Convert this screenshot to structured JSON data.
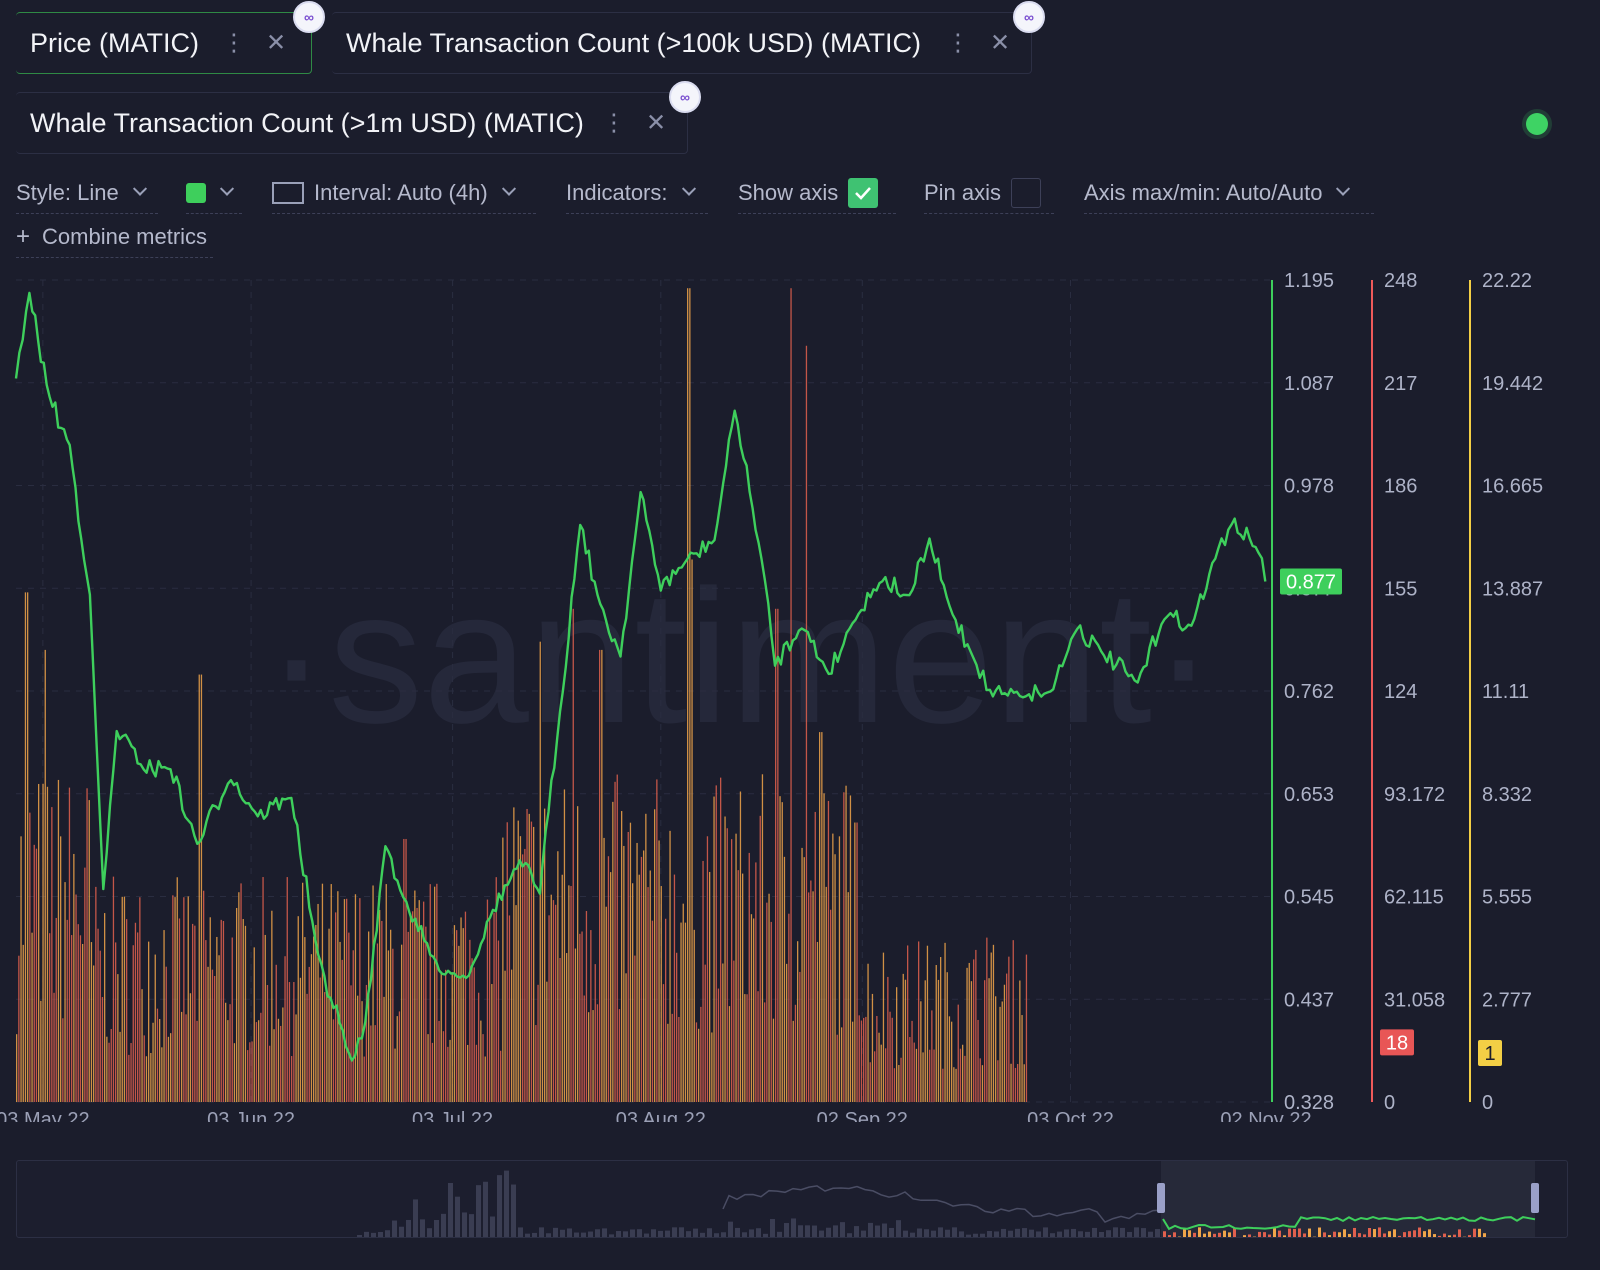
{
  "tabs": [
    {
      "label": "Price (MATIC)",
      "accent": "#3ecf5c"
    },
    {
      "label": "Whale Transaction Count (>100k USD) (MATIC)",
      "accent": "#ef5a5a"
    },
    {
      "label": "Whale Transaction Count (>1m USD) (MATIC)",
      "accent": "#f3cf45"
    }
  ],
  "badge_icon": "polygon-matic-icon",
  "toolbar": {
    "style_label": "Style: Line",
    "color": "#3ecf5c",
    "interval_label": "Interval: Auto (4h)",
    "indicators_label": "Indicators:",
    "show_axis_label": "Show axis",
    "show_axis_checked": true,
    "pin_axis_label": "Pin axis",
    "pin_axis_checked": false,
    "axis_maxmin_label": "Axis max/min: Auto/Auto",
    "combine_label": "Combine metrics"
  },
  "watermark": "·santiment·",
  "chart_data": {
    "type": "line",
    "x_ticks": [
      "03 May 22",
      "03 Jun 22",
      "03 Jul 22",
      "03 Aug 22",
      "02 Sep 22",
      "03 Oct 22",
      "02 Nov 22"
    ],
    "x_range": [
      "2022-04-29",
      "2022-11-02"
    ],
    "axes": [
      {
        "name": "Price (MATIC)",
        "color": "#3ecf5c",
        "ticks": [
          "1.195",
          "1.087",
          "0.978",
          "0.877",
          "0.762",
          "0.653",
          "0.545",
          "0.437",
          "0.328"
        ],
        "min": 0.328,
        "max": 1.195,
        "last": "0.877"
      },
      {
        "name": "Whale Transaction Count (>100k USD) (MATIC)",
        "color": "#ef5a5a",
        "ticks": [
          "248",
          "217",
          "186",
          "155",
          "124",
          "93.172",
          "62.115",
          "31.058",
          "0"
        ],
        "min": 0,
        "max": 248,
        "last": "18"
      },
      {
        "name": "Whale Transaction Count (>1m USD) (MATIC)",
        "color": "#f3cf45",
        "ticks": [
          "22.22",
          "19.442",
          "16.665",
          "13.887",
          "11.11",
          "8.332",
          "5.555",
          "2.777",
          "0"
        ],
        "min": 0,
        "max": 22.22,
        "last": "1"
      }
    ],
    "price_series": [
      {
        "date": "2022-04-29",
        "value": 1.09
      },
      {
        "date": "2022-05-01",
        "value": 1.18
      },
      {
        "date": "2022-05-04",
        "value": 1.07
      },
      {
        "date": "2022-05-07",
        "value": 1.02
      },
      {
        "date": "2022-05-10",
        "value": 0.86
      },
      {
        "date": "2022-05-12",
        "value": 0.55
      },
      {
        "date": "2022-05-14",
        "value": 0.72
      },
      {
        "date": "2022-05-18",
        "value": 0.68
      },
      {
        "date": "2022-05-22",
        "value": 0.68
      },
      {
        "date": "2022-05-26",
        "value": 0.6
      },
      {
        "date": "2022-05-31",
        "value": 0.67
      },
      {
        "date": "2022-06-04",
        "value": 0.63
      },
      {
        "date": "2022-06-09",
        "value": 0.65
      },
      {
        "date": "2022-06-13",
        "value": 0.48
      },
      {
        "date": "2022-06-18",
        "value": 0.37
      },
      {
        "date": "2022-06-20",
        "value": 0.41
      },
      {
        "date": "2022-06-23",
        "value": 0.6
      },
      {
        "date": "2022-06-27",
        "value": 0.52
      },
      {
        "date": "2022-07-01",
        "value": 0.47
      },
      {
        "date": "2022-07-05",
        "value": 0.46
      },
      {
        "date": "2022-07-09",
        "value": 0.53
      },
      {
        "date": "2022-07-13",
        "value": 0.58
      },
      {
        "date": "2022-07-16",
        "value": 0.55
      },
      {
        "date": "2022-07-19",
        "value": 0.74
      },
      {
        "date": "2022-07-22",
        "value": 0.94
      },
      {
        "date": "2022-07-25",
        "value": 0.85
      },
      {
        "date": "2022-07-28",
        "value": 0.8
      },
      {
        "date": "2022-07-31",
        "value": 0.97
      },
      {
        "date": "2022-08-03",
        "value": 0.87
      },
      {
        "date": "2022-08-07",
        "value": 0.9
      },
      {
        "date": "2022-08-11",
        "value": 0.92
      },
      {
        "date": "2022-08-14",
        "value": 1.06
      },
      {
        "date": "2022-08-18",
        "value": 0.9
      },
      {
        "date": "2022-08-20",
        "value": 0.79
      },
      {
        "date": "2022-08-24",
        "value": 0.83
      },
      {
        "date": "2022-08-28",
        "value": 0.78
      },
      {
        "date": "2022-09-01",
        "value": 0.84
      },
      {
        "date": "2022-09-05",
        "value": 0.88
      },
      {
        "date": "2022-09-09",
        "value": 0.86
      },
      {
        "date": "2022-09-12",
        "value": 0.92
      },
      {
        "date": "2022-09-15",
        "value": 0.85
      },
      {
        "date": "2022-09-19",
        "value": 0.79
      },
      {
        "date": "2022-09-21",
        "value": 0.76
      },
      {
        "date": "2022-09-25",
        "value": 0.76
      },
      {
        "date": "2022-09-30",
        "value": 0.76
      },
      {
        "date": "2022-10-04",
        "value": 0.83
      },
      {
        "date": "2022-10-08",
        "value": 0.8
      },
      {
        "date": "2022-10-13",
        "value": 0.77
      },
      {
        "date": "2022-10-17",
        "value": 0.84
      },
      {
        "date": "2022-10-21",
        "value": 0.83
      },
      {
        "date": "2022-10-25",
        "value": 0.91
      },
      {
        "date": "2022-10-27",
        "value": 0.94
      },
      {
        "date": "2022-10-31",
        "value": 0.91
      },
      {
        "date": "2022-11-01",
        "value": 0.877
      }
    ],
    "grid": true,
    "legend": "top"
  }
}
